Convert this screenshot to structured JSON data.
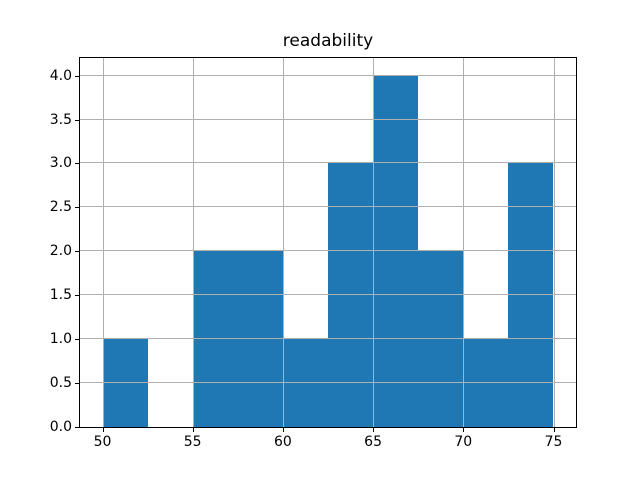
{
  "chart_data": {
    "type": "bar",
    "subtype": "histogram",
    "title": "readability",
    "xlabel": "",
    "ylabel": "",
    "bin_edges": [
      50,
      52.5,
      55,
      57.5,
      60,
      62.5,
      65,
      67.5,
      70,
      72.5,
      75
    ],
    "counts": [
      1,
      0,
      2,
      2,
      1,
      3,
      4,
      2,
      1,
      3
    ],
    "xticks": [
      50,
      55,
      60,
      65,
      70,
      75
    ],
    "xtick_labels": [
      "50",
      "55",
      "60",
      "65",
      "70",
      "75"
    ],
    "yticks": [
      0,
      0.5,
      1,
      1.5,
      2,
      2.5,
      3,
      3.5,
      4
    ],
    "ytick_labels": [
      "0.0",
      "0.5",
      "1.0",
      "1.5",
      "2.0",
      "2.5",
      "3.0",
      "3.5",
      "4.0"
    ],
    "xlim": [
      48.75,
      76.25
    ],
    "ylim": [
      0,
      4.2
    ],
    "grid": true,
    "legend": false,
    "colors": {
      "bar": "#1f77b4",
      "grid": "#b0b0b0",
      "axis": "#000000",
      "text": "#000000",
      "background": "#ffffff"
    }
  }
}
